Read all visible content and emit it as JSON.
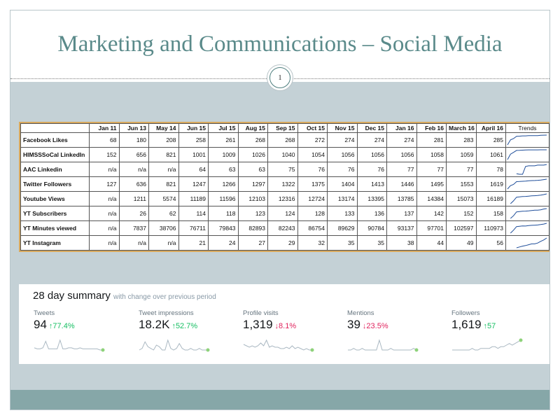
{
  "slide": {
    "title": "Marketing and Communications – Social Media",
    "page_number": "1"
  },
  "table": {
    "corner": "",
    "columns": [
      "Jan 11",
      "Jun 13",
      "May 14",
      "Jun 15",
      "Jul 15",
      "Aug 15",
      "Sep 15",
      "Oct 15",
      "Nov 15",
      "Dec 15",
      "Jan 16",
      "Feb 16",
      "March 16",
      "April 16"
    ],
    "trend_header": "Trends",
    "rows": [
      {
        "label": "Facebook Likes",
        "values": [
          "68",
          "180",
          "208",
          "258",
          "261",
          "268",
          "268",
          "272",
          "274",
          "274",
          "274",
          "281",
          "283",
          "285"
        ]
      },
      {
        "label": "HIMSSSoCal LinkedIn",
        "values": [
          "152",
          "656",
          "821",
          "1001",
          "1009",
          "1026",
          "1040",
          "1054",
          "1056",
          "1056",
          "1056",
          "1058",
          "1059",
          "1061"
        ]
      },
      {
        "label": "AAC Linkedin",
        "values": [
          "n/a",
          "n/a",
          "n/a",
          "64",
          "63",
          "63",
          "75",
          "76",
          "76",
          "76",
          "77",
          "77",
          "77",
          "78"
        ]
      },
      {
        "label": "Twitter Followers",
        "values": [
          "127",
          "636",
          "821",
          "1247",
          "1266",
          "1297",
          "1322",
          "1375",
          "1404",
          "1413",
          "1446",
          "1495",
          "1553",
          "1619"
        ]
      },
      {
        "label": "Youtube Views",
        "values": [
          "n/a",
          "1211",
          "5574",
          "11189",
          "11596",
          "12103",
          "12316",
          "12724",
          "13174",
          "13395",
          "13785",
          "14384",
          "15073",
          "16189"
        ]
      },
      {
        "label": "YT Subscribers",
        "values": [
          "n/a",
          "26",
          "62",
          "114",
          "118",
          "123",
          "124",
          "128",
          "133",
          "136",
          "137",
          "142",
          "152",
          "158"
        ]
      },
      {
        "label": "YT Minutes viewed",
        "values": [
          "n/a",
          "7837",
          "38706",
          "76711",
          "79843",
          "82893",
          "82243",
          "86754",
          "89629",
          "90784",
          "93137",
          "97701",
          "102597",
          "110973"
        ]
      },
      {
        "label": "YT Instagram",
        "values": [
          "n/a",
          "n/a",
          "n/a",
          "21",
          "24",
          "27",
          "29",
          "32",
          "35",
          "35",
          "38",
          "44",
          "49",
          "56"
        ]
      }
    ]
  },
  "summary": {
    "title": "28 day summary",
    "subtitle": "with change over previous period",
    "metrics": [
      {
        "label": "Tweets",
        "value": "94",
        "change": "77.4%",
        "direction": "up",
        "spark": [
          3,
          2,
          2,
          3,
          9,
          2,
          2,
          2,
          2,
          10,
          2,
          2,
          3,
          3,
          2,
          2,
          3,
          2,
          2,
          2,
          2,
          2,
          2,
          1,
          1
        ]
      },
      {
        "label": "Tweet impressions",
        "value": "18.2K",
        "change": "52.7%",
        "direction": "up",
        "spark": [
          3,
          4,
          8,
          5,
          4,
          3,
          6,
          5,
          3,
          3,
          9,
          4,
          3,
          4,
          7,
          4,
          3,
          3,
          4,
          3,
          3,
          4,
          3,
          3,
          3
        ]
      },
      {
        "label": "Profile visits",
        "value": "1,319",
        "change": "8.1%",
        "direction": "down",
        "spark": [
          5,
          4,
          3,
          4,
          3,
          4,
          6,
          4,
          8,
          3,
          4,
          3,
          3,
          2,
          2,
          3,
          2,
          4,
          2,
          3,
          2,
          1,
          2,
          1,
          1
        ]
      },
      {
        "label": "Mentions",
        "value": "39",
        "change": "23.5%",
        "direction": "down",
        "spark": [
          1,
          1,
          2,
          1,
          1,
          2,
          1,
          1,
          1,
          1,
          1,
          7,
          1,
          1,
          1,
          2,
          1,
          1,
          1,
          1,
          1,
          1,
          1,
          2,
          1
        ]
      },
      {
        "label": "Followers",
        "value": "1,619",
        "change": "57",
        "direction": "up",
        "spark": [
          1,
          1,
          1,
          1,
          1,
          1,
          1,
          2,
          1,
          1,
          2,
          2,
          2,
          2,
          3,
          3,
          2,
          3,
          3,
          4,
          5,
          4,
          5,
          6,
          7
        ]
      }
    ],
    "colors": {
      "up": "#17bf63",
      "down": "#e0245e",
      "spark_line": "#aab8c2",
      "spark_dot": "#8ed27a"
    }
  }
}
